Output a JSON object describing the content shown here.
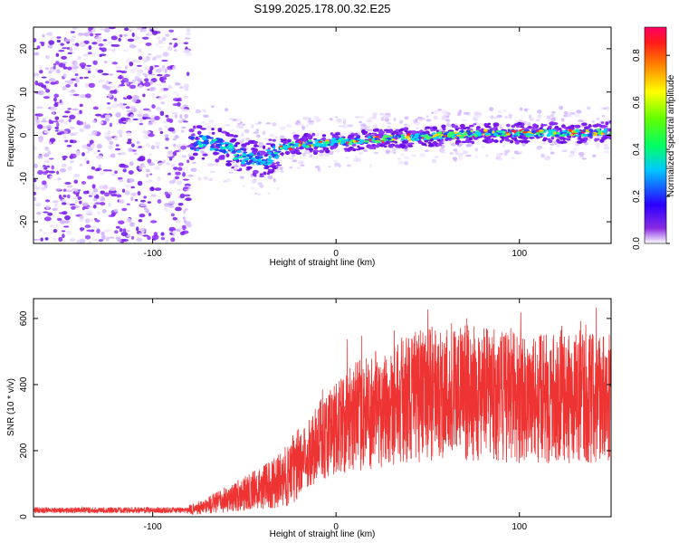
{
  "title": "S199.2025.178.00.32.E25",
  "colors": {
    "snr_line": "#ee3333",
    "track_core": "#e83030",
    "noise": "#7a1cf0"
  },
  "chart_data": [
    {
      "type": "heatmap",
      "xlabel": "Height of straight line (km)",
      "ylabel": "Frequency (Hz)",
      "xlim": [
        -165,
        150
      ],
      "ylim": [
        -25,
        25
      ],
      "x_ticks": [
        -100,
        0,
        100
      ],
      "y_ticks": [
        20,
        10,
        0,
        -10,
        -20
      ],
      "colorbar": {
        "label": "Normalized spectral amplitude",
        "range": [
          0,
          0.92
        ],
        "ticks": [
          0.0,
          0.2,
          0.4,
          0.6,
          0.8
        ],
        "colormap": "rainbow"
      },
      "noise_region_x": [
        -165,
        -80
      ],
      "track": {
        "x": [
          -80,
          -70,
          -60,
          -50,
          -40,
          -30,
          -20,
          -10,
          0,
          20,
          40,
          60,
          80,
          100,
          120,
          140,
          150
        ],
        "y": [
          -2,
          -1.5,
          -3,
          -5,
          -6,
          -3,
          -2,
          -2,
          -1.5,
          -1,
          -0.5,
          0,
          0.5,
          0.5,
          0.5,
          0.5,
          1
        ]
      }
    },
    {
      "type": "line",
      "xlabel": "Height of straight line (km)",
      "ylabel": "SNR (10 * v/v)",
      "xlim": [
        -165,
        150
      ],
      "ylim": [
        0,
        660
      ],
      "x_ticks": [
        -100,
        0,
        100
      ],
      "y_ticks": [
        0,
        200,
        400,
        600
      ],
      "envelope": {
        "x": [
          -165,
          -80,
          -70,
          -50,
          -30,
          -20,
          -10,
          0,
          10,
          20,
          30,
          40,
          60,
          80,
          100,
          120,
          140,
          150
        ],
        "y": [
          20,
          20,
          35,
          70,
          110,
          160,
          230,
          270,
          300,
          320,
          340,
          360,
          380,
          370,
          360,
          355,
          360,
          365
        ]
      }
    }
  ]
}
